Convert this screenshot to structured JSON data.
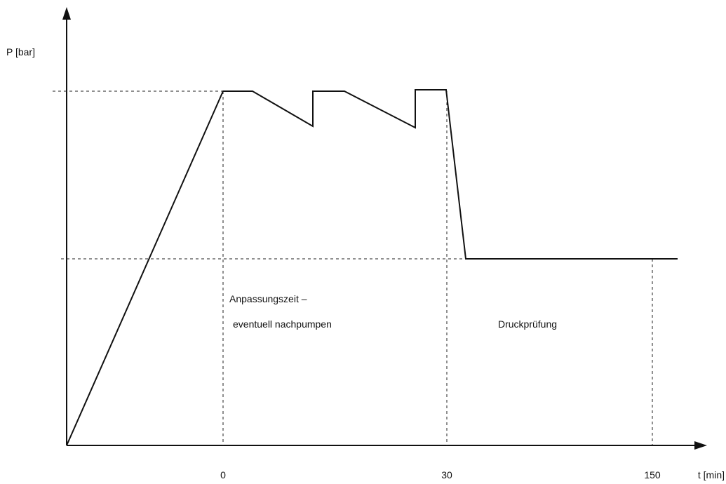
{
  "chart_data": {
    "type": "line",
    "ylabel": "P [bar]",
    "xlabel": "t [min]",
    "x_ticks": [
      "0",
      "30",
      "150"
    ],
    "annotations": [
      "Anpassungszeit –",
      "eventuell nachpumpen",
      "Druckprüfung"
    ],
    "grid": false,
    "colors": {
      "line": "#111111",
      "guide": "#222222",
      "axis": "#111111"
    }
  }
}
